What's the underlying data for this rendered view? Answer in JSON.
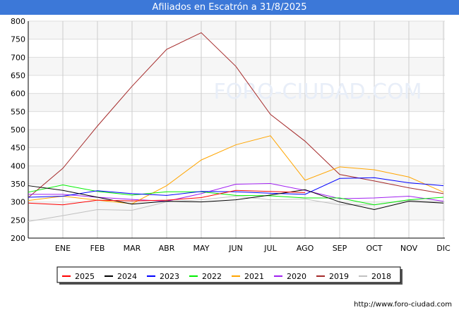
{
  "title": "Afiliados en Escatrón a 31/8/2025",
  "footer": "http://www.foro-ciudad.com",
  "watermark": "FORO-CIUDAD.COM",
  "chart_data": {
    "type": "line",
    "title": "Afiliados en Escatrón a 31/8/2025",
    "categories": [
      "",
      "ENE",
      "FEB",
      "MAR",
      "ABR",
      "MAY",
      "JUN",
      "JUL",
      "AGO",
      "SEP",
      "OCT",
      "NOV",
      "DIC"
    ],
    "ylim": [
      200,
      800
    ],
    "yticks": [
      200,
      250,
      300,
      350,
      400,
      450,
      500,
      550,
      600,
      650,
      700,
      750,
      800
    ],
    "grid": true,
    "legend": "bottom",
    "series": [
      {
        "name": "2025",
        "color": "#ff0000",
        "values": [
          297,
          292,
          305,
          303,
          305,
          312,
          332,
          329,
          326,
          null,
          null,
          null,
          null
        ]
      },
      {
        "name": "2024",
        "color": "#000000",
        "values": [
          345,
          332,
          313,
          294,
          302,
          300,
          306,
          319,
          334,
          300,
          279,
          302,
          297
        ]
      },
      {
        "name": "2023",
        "color": "#0000ff",
        "values": [
          313,
          316,
          331,
          323,
          318,
          329,
          328,
          324,
          321,
          365,
          367,
          353,
          345
        ]
      },
      {
        "name": "2022",
        "color": "#00ee00",
        "values": [
          327,
          347,
          329,
          319,
          328,
          328,
          318,
          317,
          311,
          311,
          292,
          306,
          313
        ]
      },
      {
        "name": "2021",
        "color": "#ffa500",
        "values": [
          304,
          316,
          305,
          295,
          345,
          416,
          458,
          483,
          360,
          397,
          389,
          369,
          327
        ]
      },
      {
        "name": "2020",
        "color": "#a020f0",
        "values": [
          321,
          321,
          313,
          307,
          302,
          323,
          349,
          351,
          332,
          309,
          311,
          316,
          302
        ]
      },
      {
        "name": "2019",
        "color": "#a52a2a",
        "values": [
          312,
          393,
          510,
          620,
          722,
          768,
          675,
          542,
          468,
          376,
          358,
          339,
          323
        ]
      },
      {
        "name": "2018",
        "color": "#c0c0c0",
        "values": [
          246,
          262,
          279,
          277,
          300,
          306,
          316,
          306,
          308,
          292,
          292,
          305,
          300
        ]
      }
    ]
  }
}
